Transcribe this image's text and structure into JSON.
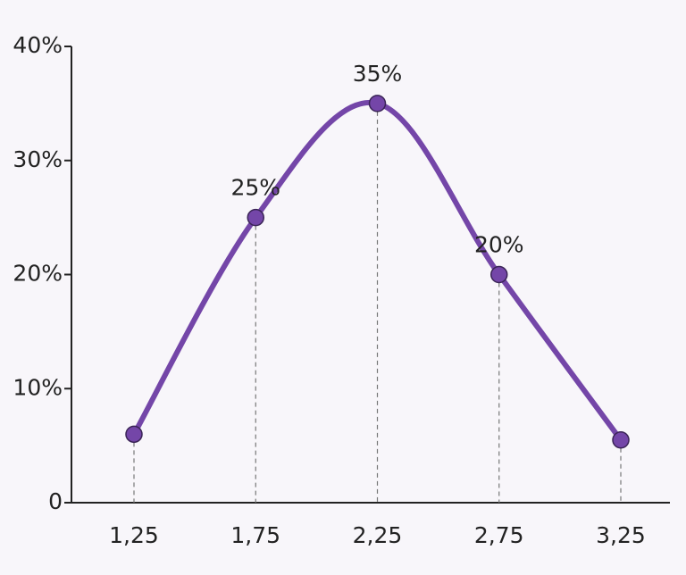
{
  "chart_data": {
    "type": "line",
    "categories": [
      "1,25",
      "1,75",
      "2,25",
      "2,75",
      "3,25"
    ],
    "series": [
      {
        "color": "#7446a8",
        "values": [
          6,
          25,
          35,
          20,
          5.5
        ],
        "value_labels": [
          null,
          "25%",
          "35%",
          "20%",
          null
        ]
      }
    ],
    "ylim": [
      0,
      40
    ],
    "yticks": [
      0,
      {
        "value": 10,
        "label": "10%"
      },
      {
        "value": 20,
        "label": "20%"
      },
      {
        "value": 30,
        "label": "30%"
      },
      {
        "value": 40,
        "label": "40%"
      }
    ],
    "grid": false
  }
}
